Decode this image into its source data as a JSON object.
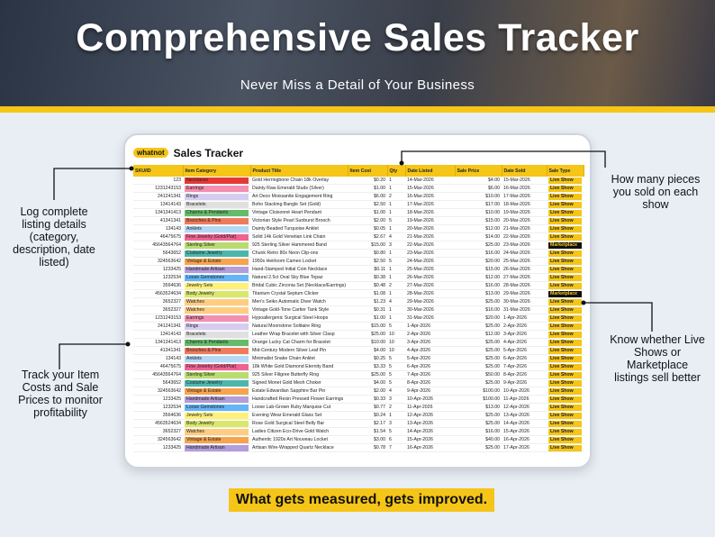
{
  "header": {
    "title": "Comprehensive Sales Tracker",
    "subtitle": "Never Miss a Detail of Your Business"
  },
  "sheet": {
    "logo": "whatnot",
    "title": "Sales Tracker",
    "columns": [
      "SKU/ID",
      "Item Category",
      "Product Title",
      "Item Cost",
      "Qty",
      "Date Listed",
      "Sale Price",
      "Date Sold",
      "Sale Type"
    ],
    "category_colors": {
      "Necklaces": "#e53935",
      "Earrings": "#f48fb1",
      "Rings": "#d7ccf0",
      "Bracelets": "#e0e0e0",
      "Charms & Pendants": "#66bb6a",
      "Brooches & Pins": "#ef7b5b",
      "Anklets": "#b3d9f5",
      "Fine Jewelry (Gold/Plat)": "#f06292",
      "Sterling Silver": "#b9dc6f",
      "Costume Jewelry": "#4db6ac",
      "Vintage & Estate": "#f7a44c",
      "Handmade Artisan": "#b39ddb",
      "Loose Gemstones": "#64b5f6",
      "Jewelry Sets": "#fff176",
      "Body Jewelry": "#d9e86a",
      "Watches": "#ffcc80"
    },
    "sale_type_colors": {
      "Live Show": [
        "#f5c518",
        "#222222"
      ],
      "Marketplace": [
        "#111111",
        "#f5c518"
      ]
    },
    "rows": [
      [
        "123",
        "Necklaces",
        "Gold Herringbone Chain 18k Overlay",
        "$0.20",
        "1",
        "14-Mar-2026",
        "$4.00",
        "15-Mar-2026",
        "Live Show"
      ],
      [
        "1231243153",
        "Earrings",
        "Dainty Raw Emerald Studs (Silver)",
        "$1.00",
        "1",
        "15-Mar-2026",
        "$6.00",
        "16-Mar-2026",
        "Live Show"
      ],
      [
        "241241341",
        "Rings",
        "Art Deco Moissanite Engagement Ring",
        "$6.00",
        "2",
        "16-Mar-2026",
        "$10.00",
        "17-Mar-2026",
        "Live Show"
      ],
      [
        "13414143",
        "Bracelets",
        "Boho Stacking Bangle Set (Gold)",
        "$2.50",
        "1",
        "17-Mar-2026",
        "$17.00",
        "18-Mar-2026",
        "Live Show"
      ],
      [
        "1341341413",
        "Charms & Pendants",
        "Vintage Cloisonné Heart Pendant",
        "$1.00",
        "1",
        "18-Mar-2026",
        "$10.00",
        "19-Mar-2026",
        "Live Show"
      ],
      [
        "41341341",
        "Brooches & Pins",
        "Victorian Style Pearl Sunburst Brooch",
        "$2.00",
        "5",
        "19-Mar-2026",
        "$15.00",
        "20-Mar-2026",
        "Live Show"
      ],
      [
        "134143",
        "Anklets",
        "Dainty Beaded Turquoise Anklet",
        "$0.05",
        "1",
        "20-Mar-2026",
        "$12.00",
        "21-Mar-2026",
        "Live Show"
      ],
      [
        "46475675",
        "Fine Jewelry (Gold/Plat)",
        "Solid 14k Gold Venetian Link Chain",
        "$2.67",
        "4",
        "21-Mar-2026",
        "$14.00",
        "22-Mar-2026",
        "Live Show"
      ],
      [
        "45643564764",
        "Sterling Silver",
        "925 Sterling Silver Hammered Band",
        "$15.00",
        "3",
        "22-Mar-2026",
        "$25.00",
        "23-Mar-2026",
        "Marketplace"
      ],
      [
        "5643652",
        "Costume Jewelry",
        "Chunk Retro 80s Neon Clip-ons",
        "$0.80",
        "1",
        "23-Mar-2026",
        "$16.00",
        "24-Mar-2026",
        "Live Show"
      ],
      [
        "324563642",
        "Vintage & Estate",
        "1950s Heirloom Cameo Locket",
        "$2.50",
        "5",
        "24-Mar-2026",
        "$20.00",
        "25-Mar-2026",
        "Live Show"
      ],
      [
        "1233425",
        "Handmade Artisan",
        "Hand-Stamped Initial Coin Necklace",
        "$0.11",
        "1",
        "25-Mar-2026",
        "$15.00",
        "26-Mar-2026",
        "Live Show"
      ],
      [
        "1232534",
        "Loose Gemstones",
        "Natural 2.5ct Oval Sky Blue Topaz",
        "$0.38",
        "1",
        "26-Mar-2026",
        "$12.00",
        "27-Mar-2026",
        "Live Show"
      ],
      [
        "3564636",
        "Jewelry Sets",
        "Bridal Cubic Zirconia Set (Necklace/Earrings)",
        "$0.48",
        "2",
        "27-Mar-2026",
        "$16.00",
        "28-Mar-2026",
        "Live Show"
      ],
      [
        "4563524634",
        "Body Jewelry",
        "Titanium Crystal Septum Clicker",
        "$1.08",
        "1",
        "28-Mar-2026",
        "$13.00",
        "29-Mar-2026",
        "Marketplace"
      ],
      [
        "3652327",
        "Watches",
        "Men's Seiko Automatic Diver Watch",
        "$1.23",
        "4",
        "29-Mar-2026",
        "$25.00",
        "30-Mar-2026",
        "Live Show"
      ],
      [
        "3652327",
        "Watches",
        "Vintage Gold-Tone Cartier Tank Style",
        "$0.31",
        "1",
        "30-Mar-2026",
        "$16.00",
        "31-Mar-2026",
        "Live Show"
      ],
      [
        "1231243153",
        "Earrings",
        "Hypoallergenic Surgical Steel Hoops",
        "$1.00",
        "1",
        "31-Mar-2026",
        "$20.00",
        "1-Apr-2026",
        "Live Show"
      ],
      [
        "241241341",
        "Rings",
        "Natural Moonstone Solitaire Ring",
        "$15.00",
        "5",
        "1-Apr-2026",
        "$25.00",
        "2-Apr-2026",
        "Live Show"
      ],
      [
        "13414143",
        "Bracelets",
        "Leather Wrap Bracelet with Silver Clasp",
        "$25.00",
        "10",
        "2-Apr-2026",
        "$12.00",
        "3-Apr-2026",
        "Live Show"
      ],
      [
        "1341341413",
        "Charms & Pendants",
        "Orange Lucky Cat Charm for Bracelet",
        "$10.00",
        "10",
        "3-Apr-2026",
        "$25.00",
        "4-Apr-2026",
        "Live Show"
      ],
      [
        "41341341",
        "Brooches & Pins",
        "Mid-Century Modern Silver Leaf Pin",
        "$4.00",
        "10",
        "4-Apr-2026",
        "$25.00",
        "5-Apr-2026",
        "Live Show"
      ],
      [
        "134143",
        "Anklets",
        "Minimalist Snake Chain Anklet",
        "$0.25",
        "5",
        "5-Apr-2026",
        "$25.00",
        "6-Apr-2026",
        "Live Show"
      ],
      [
        "46475675",
        "Fine Jewelry (Gold/Plat)",
        "18k White Gold Diamond Eternity Band",
        "$3.33",
        "5",
        "6-Apr-2026",
        "$25.00",
        "7-Apr-2026",
        "Live Show"
      ],
      [
        "45643564764",
        "Sterling Silver",
        "925 Silver Filigree Butterfly Ring",
        "$25.00",
        "5",
        "7-Apr-2026",
        "$50.00",
        "8-Apr-2026",
        "Live Show"
      ],
      [
        "5643652",
        "Costume Jewelry",
        "Signed Monet Gold Mesh Choker",
        "$4.00",
        "5",
        "8-Apr-2026",
        "$25.00",
        "9-Apr-2026",
        "Live Show"
      ],
      [
        "324563642",
        "Vintage & Estate",
        "Estate Edwardian Sapphire Bar Pin",
        "$2.00",
        "4",
        "9-Apr-2026",
        "$100.00",
        "10-Apr-2026",
        "Live Show"
      ],
      [
        "1233425",
        "Handmade Artisan",
        "Handcrafted Resin Pressed Flower Earrings",
        "$0.33",
        "3",
        "10-Apr-2026",
        "$100.00",
        "11-Apr-2026",
        "Live Show"
      ],
      [
        "1232534",
        "Loose Gemstones",
        "Loose Lab-Grown Ruby Marquise Cut",
        "$0.77",
        "2",
        "11-Apr-2026",
        "$13.00",
        "12-Apr-2026",
        "Live Show"
      ],
      [
        "3564636",
        "Jewelry Sets",
        "Evening Wear Emerald Glass Set",
        "$0.24",
        "1",
        "12-Apr-2026",
        "$25.00",
        "13-Apr-2026",
        "Live Show"
      ],
      [
        "4563524634",
        "Body Jewelry",
        "Rose Gold Surgical Steel Belly Bar",
        "$2.17",
        "3",
        "13-Apr-2026",
        "$25.00",
        "14-Apr-2026",
        "Live Show"
      ],
      [
        "3652327",
        "Watches",
        "Ladies Citizen Eco-Drive Gold Watch",
        "$1.54",
        "5",
        "14-Apr-2026",
        "$16.00",
        "15-Apr-2026",
        "Live Show"
      ],
      [
        "324563642",
        "Vintage & Estate",
        "Authentic 1920s Art Nouveau Locket",
        "$3.00",
        "6",
        "15-Apr-2026",
        "$40.00",
        "16-Apr-2026",
        "Live Show"
      ],
      [
        "1233425",
        "Handmade Artisan",
        "Artisan Wire-Wrapped Quartz Necklace",
        "$0.78",
        "7",
        "16-Apr-2026",
        "$25.00",
        "17-Apr-2026",
        "Live Show"
      ]
    ]
  },
  "annotations": [
    "How many pieces you sold on each show",
    "Log complete listing details (category, description, date listed)",
    "Know whether Live Shows or Marketplace listings sell better",
    "Track your Item Costs and Sale Prices to monitor profitability"
  ],
  "footer": {
    "tagline": "What gets measured, gets improved."
  }
}
